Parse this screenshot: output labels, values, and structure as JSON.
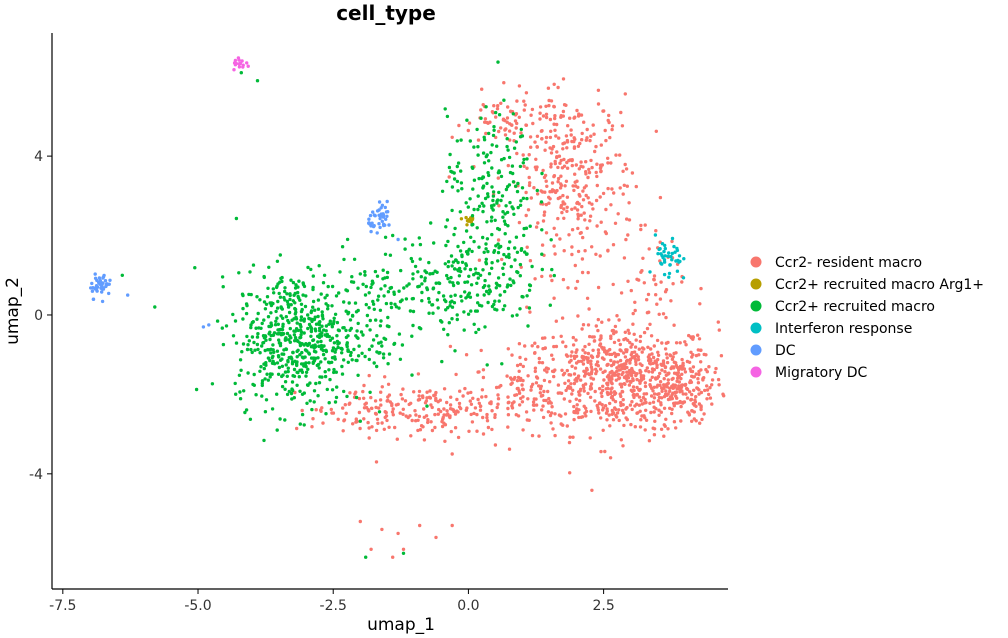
{
  "chart_data": {
    "type": "scatter",
    "title": "cell_type",
    "xlabel": "umap_1",
    "ylabel": "umap_2",
    "xlim": [
      -7.7,
      4.8
    ],
    "ylim": [
      -6.9,
      7.1
    ],
    "x_ticks": [
      -7.5,
      -5.0,
      -2.5,
      0.0,
      2.5
    ],
    "x_tick_labels": [
      "-7.5",
      "-5.0",
      "-2.5",
      "0.0",
      "2.5"
    ],
    "y_ticks": [
      -4,
      0,
      4
    ],
    "y_tick_labels": [
      "-4",
      "0",
      "4"
    ],
    "grid": false,
    "legend_position": "right",
    "series": [
      {
        "name": "Ccr2- resident macro",
        "color": "#F8766D",
        "clusters": [
          {
            "cx": 2.8,
            "cy": -1.6,
            "sx": 0.9,
            "sy": 0.7,
            "n": 700
          },
          {
            "cx": 3.8,
            "cy": -1.8,
            "sx": 0.35,
            "sy": 0.45,
            "n": 150
          },
          {
            "cx": 1.9,
            "cy": 3.3,
            "sx": 0.6,
            "sy": 1.1,
            "n": 330
          },
          {
            "cx": 0.9,
            "cy": 4.9,
            "sx": 0.6,
            "sy": 0.35,
            "n": 80
          },
          {
            "cx": -0.5,
            "cy": -2.4,
            "sx": 0.9,
            "sy": 0.35,
            "n": 180
          },
          {
            "cx": -1.9,
            "cy": -2.4,
            "sx": 0.5,
            "sy": 0.3,
            "n": 60
          },
          {
            "cx": 3.3,
            "cy": 0.8,
            "sx": 0.35,
            "sy": 0.5,
            "n": 40
          },
          {
            "cx": 1.0,
            "cy": -1.8,
            "sx": 0.4,
            "sy": 0.5,
            "n": 60
          }
        ],
        "points": [
          [
            -2.0,
            -5.2
          ],
          [
            -1.6,
            -5.4
          ],
          [
            -1.4,
            -6.1
          ],
          [
            -1.2,
            -5.9
          ],
          [
            -0.9,
            -5.3
          ],
          [
            -0.6,
            -5.6
          ],
          [
            -0.3,
            -5.3
          ],
          [
            -1.8,
            -5.9
          ],
          [
            -1.3,
            -5.5
          ],
          [
            -1.7,
            -3.7
          ],
          [
            -0.3,
            -3.5
          ]
        ]
      },
      {
        "name": "Ccr2+ recruited macro Arg1+",
        "color": "#B79F00",
        "clusters": [
          {
            "cx": 0.02,
            "cy": 2.4,
            "sx": 0.08,
            "sy": 0.06,
            "n": 14
          }
        ],
        "points": []
      },
      {
        "name": "Ccr2+ recruited macro",
        "color": "#00BA38",
        "clusters": [
          {
            "cx": -3.2,
            "cy": -0.6,
            "sx": 0.55,
            "sy": 0.85,
            "n": 550
          },
          {
            "cx": -1.9,
            "cy": 0.0,
            "sx": 0.5,
            "sy": 0.9,
            "n": 110
          },
          {
            "cx": 0.4,
            "cy": 3.5,
            "sx": 0.4,
            "sy": 0.8,
            "n": 140
          },
          {
            "cx": 0.3,
            "cy": 1.2,
            "sx": 0.5,
            "sy": 0.8,
            "n": 200
          },
          {
            "cx": -0.8,
            "cy": 0.7,
            "sx": 0.5,
            "sy": 0.6,
            "n": 90
          }
        ],
        "points": [
          [
            -6.4,
            1.0
          ],
          [
            -5.8,
            0.2
          ],
          [
            -4.2,
            6.1
          ],
          [
            -3.9,
            5.9
          ],
          [
            -1.9,
            -6.1
          ],
          [
            -1.2,
            -6.0
          ],
          [
            -2.3,
            1.4
          ],
          [
            -1.4,
            2.0
          ]
        ]
      },
      {
        "name": "Interferon response",
        "color": "#00BFC4",
        "clusters": [
          {
            "cx": 3.7,
            "cy": 1.35,
            "sx": 0.12,
            "sy": 0.3,
            "n": 40
          }
        ],
        "points": []
      },
      {
        "name": "DC",
        "color": "#619CFF",
        "clusters": [
          {
            "cx": -6.8,
            "cy": 0.75,
            "sx": 0.1,
            "sy": 0.15,
            "n": 45
          },
          {
            "cx": -1.6,
            "cy": 2.45,
            "sx": 0.12,
            "sy": 0.15,
            "n": 40
          }
        ],
        "points": [
          [
            -6.3,
            0.5
          ],
          [
            -4.9,
            -0.3
          ],
          [
            -4.8,
            -0.25
          ],
          [
            -1.3,
            1.9
          ],
          [
            -1.8,
            2.1
          ]
        ]
      },
      {
        "name": "Migratory DC",
        "color": "#F564E3",
        "clusters": [
          {
            "cx": -4.2,
            "cy": 6.3,
            "sx": 0.08,
            "sy": 0.07,
            "n": 16
          }
        ],
        "points": []
      }
    ]
  }
}
